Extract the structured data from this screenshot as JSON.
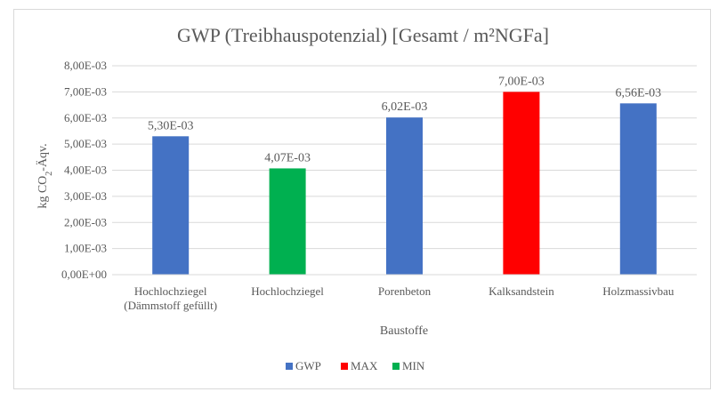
{
  "chart_data": {
    "type": "bar",
    "title": "GWP (Treibhauspotenzial) [Gesamt / m²NGFa]",
    "xlabel": "Baustoffe",
    "ylabel": {
      "pre": "kg CO",
      "sub": "2",
      "post": "-Äqv."
    },
    "ylim": [
      0,
      0.008
    ],
    "yticks": [
      "0,00E+00",
      "1,00E-03",
      "2,00E-03",
      "3,00E-03",
      "4,00E-03",
      "5,00E-03",
      "6,00E-03",
      "7,00E-03",
      "8,00E-03"
    ],
    "grid": true,
    "legend_position": "bottom",
    "categories": [
      [
        "Hochlochziegel",
        "(Dämmstoff gefüllt)"
      ],
      [
        "Hochlochziegel"
      ],
      [
        "Porenbeton"
      ],
      [
        "Kalksandstein"
      ],
      [
        "Holzmassivbau"
      ]
    ],
    "values": [
      0.0053,
      0.00407,
      0.00602,
      0.007,
      0.00656
    ],
    "value_labels": [
      "5,30E-03",
      "4,07E-03",
      "6,02E-03",
      "7,00E-03",
      "6,56E-03"
    ],
    "bar_series": [
      "GWP",
      "MIN",
      "GWP",
      "MAX",
      "GWP"
    ],
    "legend": [
      {
        "name": "GWP",
        "color": "#4472c4"
      },
      {
        "name": "MAX",
        "color": "#ff0000"
      },
      {
        "name": "MIN",
        "color": "#00b050"
      }
    ]
  }
}
